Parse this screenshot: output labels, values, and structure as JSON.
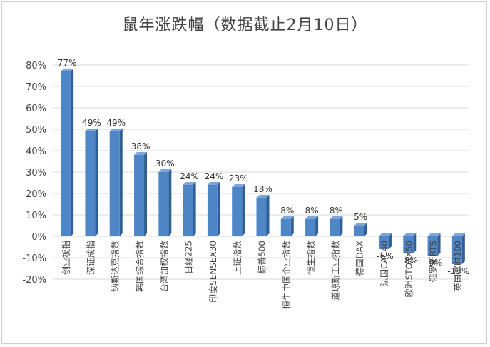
{
  "chart_data": {
    "type": "bar",
    "title": "鼠年涨跌幅（数据截止2月10日）",
    "categories": [
      "创业板指",
      "深证成指",
      "纳斯达克指数",
      "韩国综合指数",
      "台湾加权指数",
      "日经225",
      "印度SENSEX30",
      "上证指数",
      "标普500",
      "恒生中国企业指数",
      "恒生指数",
      "道琼斯工业指数",
      "德国DAX",
      "法国CAC40",
      "欧洲STOXX50",
      "俄罗斯RTS",
      "英国富时100"
    ],
    "values": [
      77,
      49,
      49,
      38,
      30,
      24,
      24,
      23,
      18,
      8,
      8,
      8,
      5,
      -6,
      -8,
      -9,
      -13
    ],
    "value_labels": [
      "77%",
      "49%",
      "49%",
      "38%",
      "30%",
      "24%",
      "24%",
      "23%",
      "18%",
      "8%",
      "8%",
      "8%",
      "5%",
      "-6%",
      "-8%",
      "-9%",
      "-13%"
    ],
    "yticks": [
      "-20%",
      "-10%",
      "0%",
      "10%",
      "20%",
      "30%",
      "40%",
      "50%",
      "60%",
      "70%",
      "80%"
    ],
    "ylim": [
      -20,
      80
    ],
    "xlabel": "",
    "ylabel": "",
    "grid": true,
    "bar_color": "#4f86c6",
    "bar_side_color": "#2f5f96",
    "grid_color": "#d9d9d9"
  }
}
